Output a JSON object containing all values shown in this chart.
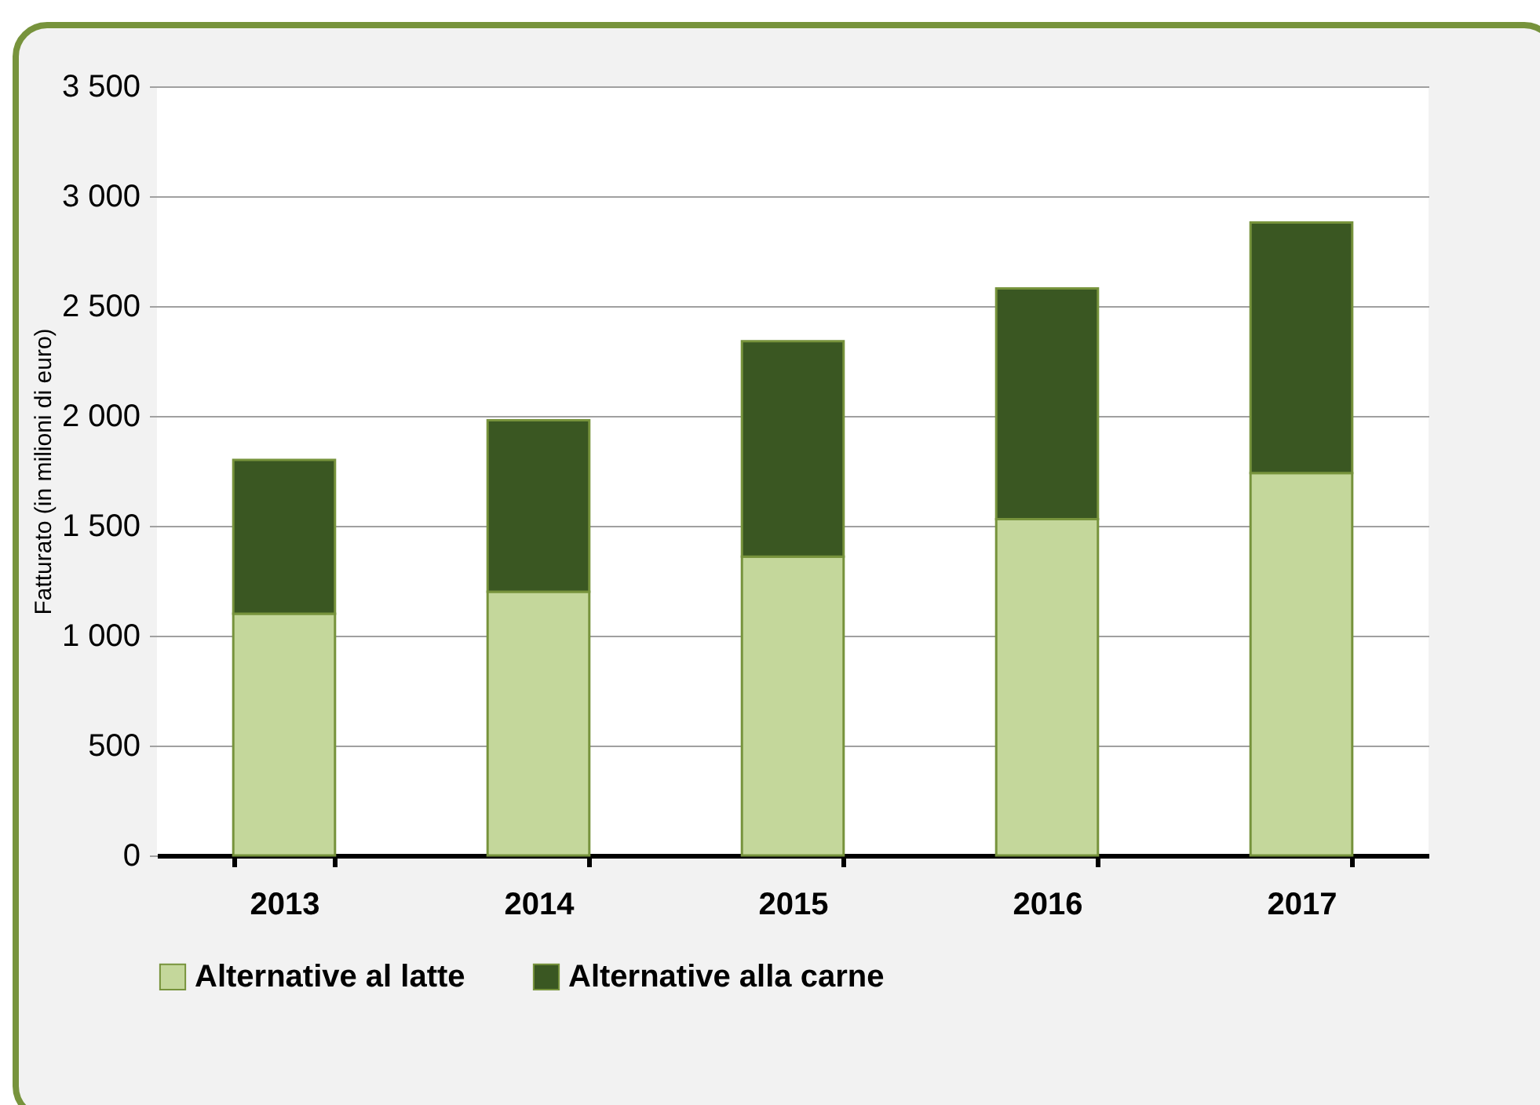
{
  "chart_data": {
    "type": "bar",
    "ylabel": "Fatturato (in milioni di euro)",
    "categories": [
      "2013",
      "2014",
      "2015",
      "2016",
      "2017"
    ],
    "stacked": true,
    "series": [
      {
        "name": "Alternative al latte",
        "color": "#c4d79b",
        "values": [
          1100,
          1200,
          1360,
          1530,
          1740
        ]
      },
      {
        "name": "Alternative alla carne",
        "color": "#3a5722",
        "values": [
          700,
          780,
          980,
          1050,
          1140
        ]
      }
    ],
    "ylim": [
      0,
      3500
    ],
    "yticks": [
      0,
      500,
      {
        "value": 1000,
        "label": "1 000"
      },
      {
        "value": 1500,
        "label": "1 500"
      },
      {
        "value": 2000,
        "label": "2 000"
      },
      {
        "value": 2500,
        "label": "2 500"
      },
      {
        "value": 3000,
        "label": "3 000"
      },
      {
        "value": 3500,
        "label": "3 500"
      }
    ],
    "grid": "y",
    "legend": "bottom"
  }
}
